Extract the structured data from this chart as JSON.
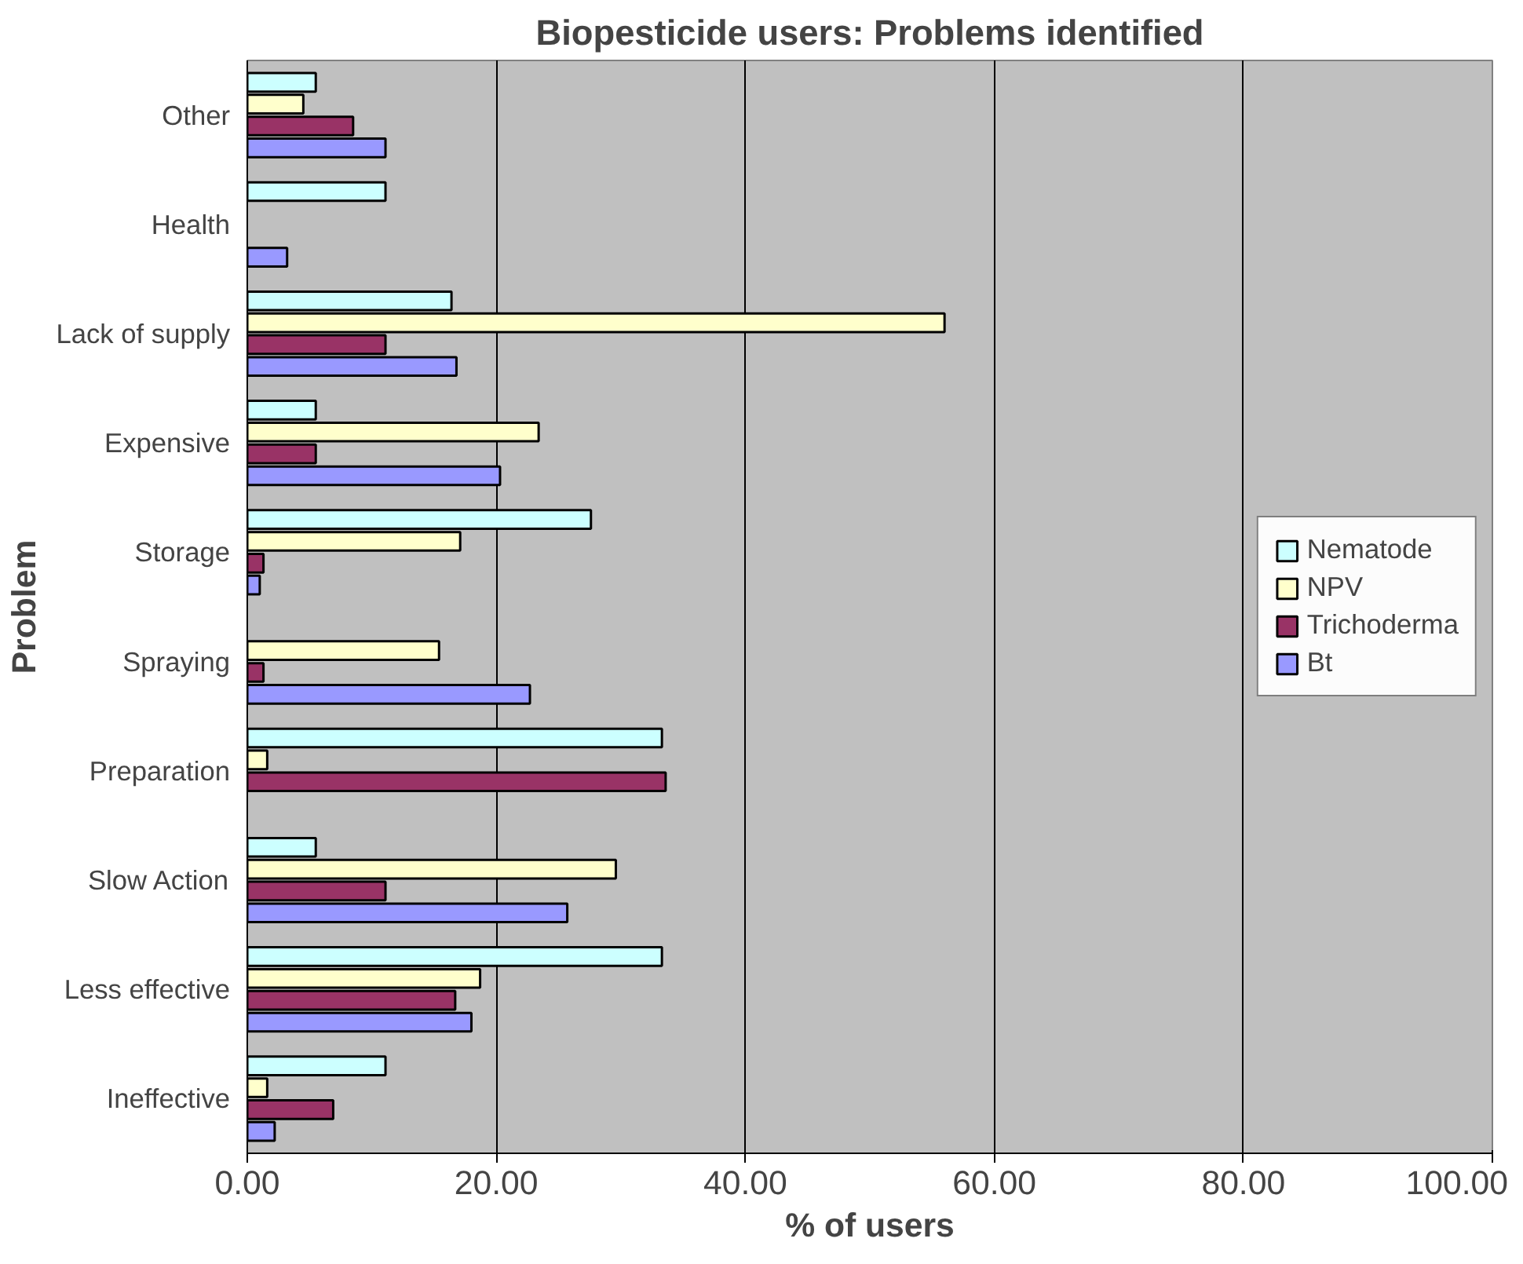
{
  "chart_data": {
    "type": "bar",
    "orientation": "horizontal",
    "title": "Biopesticide users: Problems identified",
    "xlabel": "% of users",
    "ylabel": "Problem",
    "categories": [
      "Other",
      "Health",
      "Lack of supply",
      "Expensive",
      "Storage",
      "Spraying",
      "Preparation",
      "Slow Action",
      "Less effective",
      "Ineffective"
    ],
    "series": [
      {
        "name": "Nematode",
        "color": "#ccffff",
        "values": [
          5.5,
          11.1,
          16.4,
          5.5,
          27.6,
          null,
          33.3,
          5.5,
          33.3,
          11.1
        ]
      },
      {
        "name": "NPV",
        "color": "#ffffcc",
        "values": [
          4.5,
          null,
          56.0,
          23.4,
          17.1,
          15.4,
          1.6,
          29.6,
          18.7,
          1.6
        ]
      },
      {
        "name": "Trichoderma",
        "color": "#993366",
        "values": [
          8.5,
          null,
          11.1,
          5.5,
          1.3,
          1.3,
          33.6,
          11.1,
          16.7,
          6.9
        ]
      },
      {
        "name": "Bt",
        "color": "#9999ff",
        "values": [
          11.1,
          3.2,
          16.8,
          20.3,
          1.0,
          22.7,
          null,
          25.7,
          18.0,
          2.2
        ]
      }
    ],
    "xlim": [
      0,
      100
    ],
    "xticks": [
      {
        "value": 0,
        "label": "0.00"
      },
      {
        "value": 20,
        "label": "20.00"
      },
      {
        "value": 40,
        "label": "40.00"
      },
      {
        "value": 60,
        "label": "60.00"
      },
      {
        "value": 80,
        "label": "80.00"
      },
      {
        "value": 100,
        "label": "100.00"
      }
    ],
    "grid": "x",
    "legend": "right"
  }
}
